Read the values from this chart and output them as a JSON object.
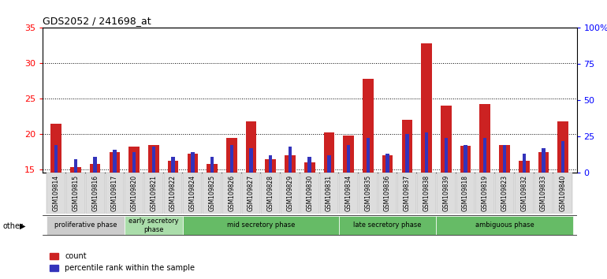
{
  "title": "GDS2052 / 241698_at",
  "samples": [
    "GSM109814",
    "GSM109815",
    "GSM109816",
    "GSM109817",
    "GSM109820",
    "GSM109821",
    "GSM109822",
    "GSM109824",
    "GSM109825",
    "GSM109826",
    "GSM109827",
    "GSM109828",
    "GSM109829",
    "GSM109830",
    "GSM109831",
    "GSM109834",
    "GSM109835",
    "GSM109836",
    "GSM109837",
    "GSM109838",
    "GSM109839",
    "GSM109818",
    "GSM109819",
    "GSM109823",
    "GSM109832",
    "GSM109833",
    "GSM109840"
  ],
  "count_values": [
    21.5,
    15.3,
    15.8,
    17.5,
    18.2,
    18.5,
    16.2,
    17.2,
    15.8,
    19.5,
    21.8,
    16.5,
    17.0,
    16.0,
    20.2,
    19.8,
    27.8,
    17.0,
    22.0,
    32.8,
    24.0,
    18.3,
    24.2,
    18.5,
    16.2,
    17.5,
    21.8
  ],
  "percentile_values": [
    18.5,
    16.5,
    16.8,
    17.8,
    17.5,
    18.2,
    16.8,
    17.5,
    16.8,
    18.5,
    18.0,
    17.0,
    18.2,
    16.8,
    17.0,
    18.5,
    19.5,
    17.2,
    20.0,
    20.2,
    19.5,
    18.5,
    19.5,
    18.5,
    17.2,
    18.0,
    19.0
  ],
  "phase_configs": [
    {
      "label": "proliferative phase",
      "start": 0,
      "end": 4,
      "color": "#cccccc"
    },
    {
      "label": "early secretory\nphase",
      "start": 4,
      "end": 7,
      "color": "#aaddaa"
    },
    {
      "label": "mid secretory phase",
      "start": 7,
      "end": 15,
      "color": "#66bb66"
    },
    {
      "label": "late secretory phase",
      "start": 15,
      "end": 20,
      "color": "#66bb66"
    },
    {
      "label": "ambiguous phase",
      "start": 20,
      "end": 27,
      "color": "#66bb66"
    }
  ],
  "ylim_left": [
    14.5,
    35
  ],
  "ylim_right": [
    0,
    100
  ],
  "yticks_left": [
    15,
    20,
    25,
    30,
    35
  ],
  "yticks_right": [
    0,
    25,
    50,
    75,
    100
  ],
  "count_color": "#cc2222",
  "percentile_color": "#3333bb",
  "background_color": "#ffffff",
  "legend_count": "count",
  "legend_percentile": "percentile rank within the sample",
  "tick_label_bg": "#dddddd",
  "bar_width": 0.55,
  "blue_bar_width": 0.18
}
